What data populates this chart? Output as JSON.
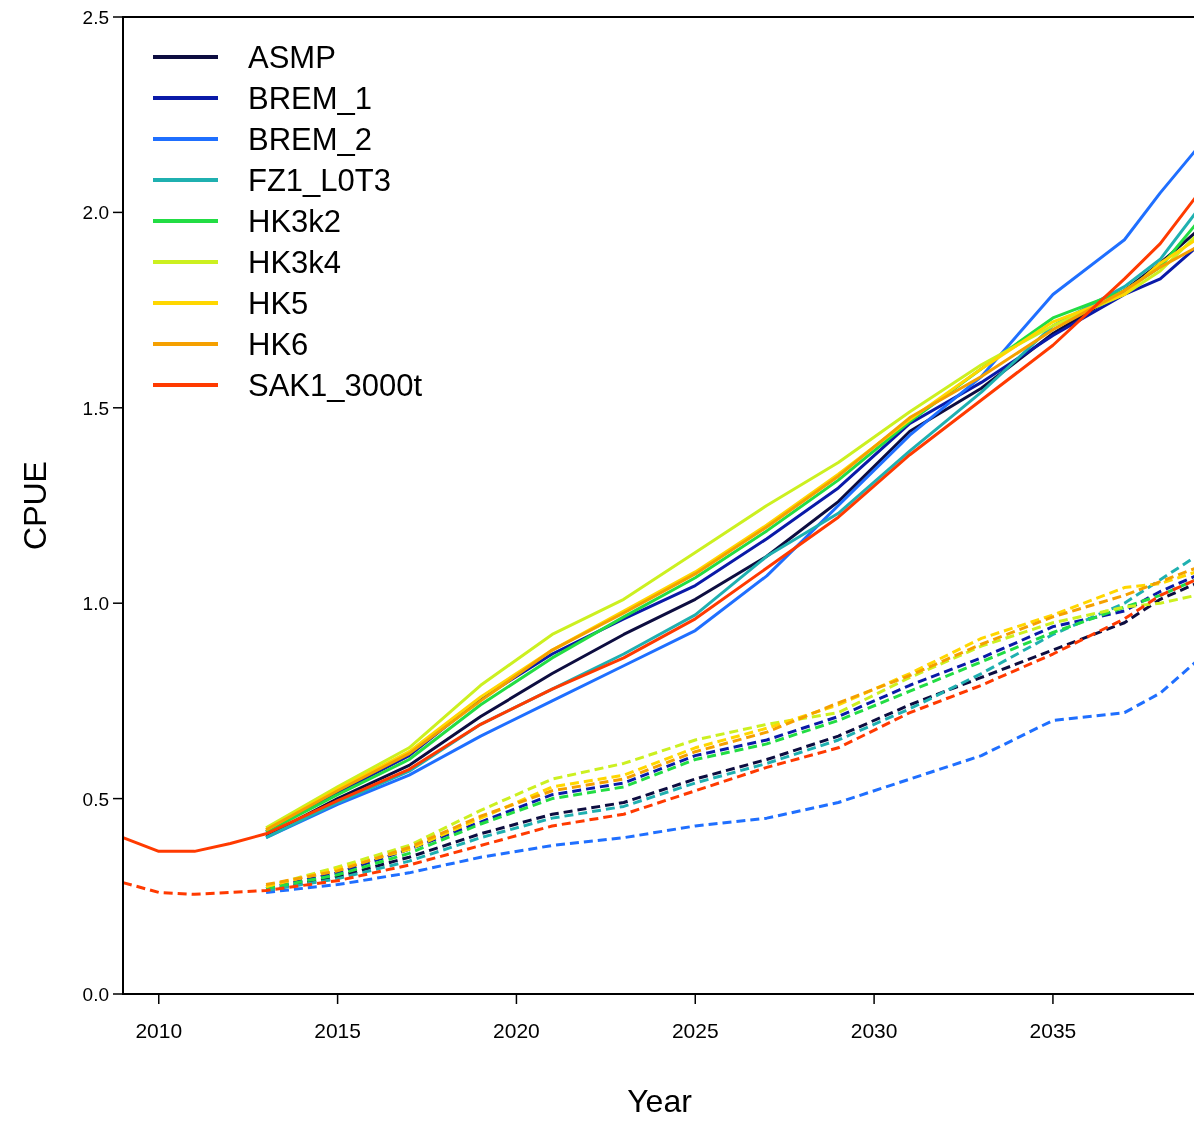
{
  "chart_data": {
    "type": "line",
    "xlabel": "Year",
    "ylabel": "CPUE",
    "x": [
      2009,
      2010,
      2011,
      2012,
      2013,
      2015,
      2017,
      2019,
      2021,
      2023,
      2025,
      2027,
      2029,
      2031,
      2033,
      2035,
      2037,
      2038,
      2039
    ],
    "xlim": [
      2009,
      2039
    ],
    "xticks": [
      2010,
      2015,
      2020,
      2025,
      2030,
      2035
    ],
    "ylim": [
      0,
      2.5
    ],
    "yticks": [
      {
        "value": 0,
        "label": "0.0"
      },
      {
        "value": 0.5,
        "label": "0.5"
      },
      {
        "value": 1,
        "label": "1.0"
      },
      {
        "value": 1.5,
        "label": "1.5"
      },
      {
        "value": 2,
        "label": "2.0"
      },
      {
        "value": 2.5,
        "label": "2.5"
      }
    ],
    "grid": false,
    "legend": "top left",
    "series": [
      {
        "name": "ASMP",
        "color": "#0d0d40",
        "line_style": "solid",
        "values": [
          null,
          null,
          null,
          null,
          0.405,
          0.5,
          0.585,
          0.71,
          0.82,
          0.92,
          1.01,
          1.12,
          1.26,
          1.44,
          1.55,
          1.69,
          1.8,
          1.87,
          1.95
        ]
      },
      {
        "name": "BREM_1",
        "color": "#0a1aa8",
        "line_style": "solid",
        "values": [
          null,
          null,
          null,
          null,
          0.415,
          0.515,
          0.61,
          0.755,
          0.87,
          0.96,
          1.045,
          1.165,
          1.295,
          1.46,
          1.565,
          1.685,
          1.79,
          1.83,
          1.91
        ]
      },
      {
        "name": "BREM_2",
        "color": "#1f6fff",
        "line_style": "solid",
        "values": [
          null,
          null,
          null,
          null,
          0.4,
          0.485,
          0.56,
          0.66,
          0.75,
          0.84,
          0.93,
          1.07,
          1.25,
          1.43,
          1.58,
          1.79,
          1.93,
          2.05,
          2.16
        ]
      },
      {
        "name": "FZ1_L0T3",
        "color": "#1fb0b0",
        "line_style": "solid",
        "values": [
          null,
          null,
          null,
          null,
          0.4,
          0.49,
          0.57,
          0.69,
          0.78,
          0.87,
          0.97,
          1.12,
          1.23,
          1.39,
          1.54,
          1.71,
          1.81,
          1.88,
          2.0
        ]
      },
      {
        "name": "HK3k2",
        "color": "#22dd44",
        "line_style": "solid",
        "values": [
          null,
          null,
          null,
          null,
          0.415,
          0.51,
          0.6,
          0.74,
          0.86,
          0.965,
          1.065,
          1.185,
          1.315,
          1.465,
          1.6,
          1.73,
          1.8,
          1.86,
          1.97
        ]
      },
      {
        "name": "HK3k4",
        "color": "#ccf020",
        "line_style": "solid",
        "values": [
          null,
          null,
          null,
          null,
          0.425,
          0.53,
          0.63,
          0.79,
          0.92,
          1.01,
          1.13,
          1.25,
          1.36,
          1.49,
          1.61,
          1.71,
          1.79,
          1.85,
          1.94
        ]
      },
      {
        "name": "HK5",
        "color": "#ffd700",
        "line_style": "solid",
        "values": [
          null,
          null,
          null,
          null,
          0.42,
          0.525,
          0.62,
          0.76,
          0.88,
          0.98,
          1.08,
          1.2,
          1.33,
          1.47,
          1.6,
          1.72,
          1.79,
          1.87,
          1.93
        ]
      },
      {
        "name": "HK6",
        "color": "#f5a000",
        "line_style": "solid",
        "values": [
          null,
          null,
          null,
          null,
          0.42,
          0.52,
          0.615,
          0.75,
          0.88,
          0.975,
          1.075,
          1.195,
          1.325,
          1.475,
          1.58,
          1.7,
          1.8,
          1.86,
          1.91
        ]
      },
      {
        "name": "SAK1_3000t",
        "color": "#ff3a00",
        "line_style": "solid",
        "values": [
          0.4,
          0.365,
          0.365,
          0.385,
          0.41,
          0.495,
          0.575,
          0.69,
          0.78,
          0.86,
          0.96,
          1.09,
          1.22,
          1.38,
          1.52,
          1.66,
          1.83,
          1.92,
          2.04
        ]
      },
      {
        "color": "#0d0d40",
        "line_style": "dashed",
        "values": [
          null,
          null,
          null,
          null,
          0.265,
          0.3,
          0.35,
          0.41,
          0.46,
          0.49,
          0.55,
          0.6,
          0.66,
          0.74,
          0.81,
          0.88,
          0.95,
          1.01,
          1.05
        ]
      },
      {
        "color": "#0a1aa8",
        "line_style": "dashed",
        "values": [
          null,
          null,
          null,
          null,
          0.27,
          0.31,
          0.37,
          0.44,
          0.51,
          0.54,
          0.61,
          0.65,
          0.71,
          0.79,
          0.86,
          0.94,
          0.98,
          1.03,
          1.07
        ]
      },
      {
        "color": "#1f6fff",
        "line_style": "dashed",
        "values": [
          null,
          null,
          null,
          null,
          0.26,
          0.28,
          0.31,
          0.35,
          0.38,
          0.4,
          0.43,
          0.45,
          0.49,
          0.55,
          0.61,
          0.7,
          0.72,
          0.77,
          0.85
        ]
      },
      {
        "color": "#1fb0b0",
        "line_style": "dashed",
        "values": [
          null,
          null,
          null,
          null,
          0.265,
          0.295,
          0.34,
          0.4,
          0.45,
          0.48,
          0.54,
          0.59,
          0.65,
          0.73,
          0.82,
          0.92,
          1.0,
          1.06,
          1.12
        ]
      },
      {
        "color": "#22dd44",
        "line_style": "dashed",
        "values": [
          null,
          null,
          null,
          null,
          0.27,
          0.305,
          0.36,
          0.435,
          0.5,
          0.53,
          0.6,
          0.64,
          0.7,
          0.775,
          0.85,
          0.925,
          0.99,
          1.02,
          1.06
        ]
      },
      {
        "color": "#ccf020",
        "line_style": "dashed",
        "values": [
          null,
          null,
          null,
          null,
          0.275,
          0.325,
          0.38,
          0.47,
          0.55,
          0.59,
          0.65,
          0.69,
          0.72,
          0.81,
          0.89,
          0.95,
          0.99,
          1.0,
          1.02
        ]
      },
      {
        "color": "#ffd700",
        "line_style": "dashed",
        "values": [
          null,
          null,
          null,
          null,
          0.275,
          0.32,
          0.37,
          0.45,
          0.53,
          0.56,
          0.63,
          0.68,
          0.74,
          0.82,
          0.91,
          0.97,
          1.04,
          1.05,
          1.08
        ]
      },
      {
        "color": "#f5a000",
        "line_style": "dashed",
        "values": [
          null,
          null,
          null,
          null,
          0.28,
          0.315,
          0.375,
          0.455,
          0.52,
          0.55,
          0.62,
          0.67,
          0.745,
          0.815,
          0.895,
          0.965,
          1.02,
          1.055,
          1.09
        ]
      },
      {
        "color": "#ff3a00",
        "line_style": "dashed",
        "values": [
          0.285,
          0.26,
          0.255,
          0.26,
          0.265,
          0.29,
          0.33,
          0.38,
          0.43,
          0.46,
          0.52,
          0.58,
          0.63,
          0.72,
          0.79,
          0.87,
          0.96,
          1.02,
          1.06
        ]
      }
    ]
  }
}
